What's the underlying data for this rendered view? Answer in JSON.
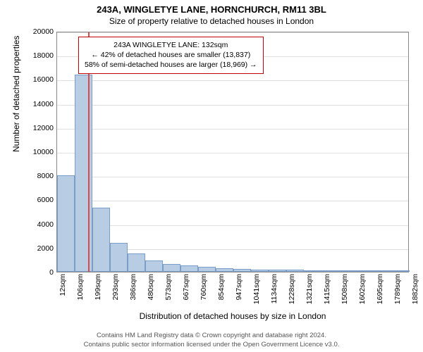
{
  "title": "243A, WINGLETYE LANE, HORNCHURCH, RM11 3BL",
  "subtitle": "Size of property relative to detached houses in London",
  "chart": {
    "type": "histogram",
    "background_color": "#ffffff",
    "grid_color": "#e0e0e0",
    "border_color": "#888888",
    "bar_fill": "#b8cce4",
    "bar_stroke": "#7a9ec9",
    "marker_color": "#d94a4a",
    "ylabel": "Number of detached properties",
    "xlabel": "Distribution of detached houses by size in London",
    "ylim": [
      0,
      20000
    ],
    "ytick_step": 2000,
    "yticks": [
      0,
      2000,
      4000,
      6000,
      8000,
      10000,
      12000,
      14000,
      16000,
      18000,
      20000
    ],
    "xticks": [
      "12sqm",
      "106sqm",
      "199sqm",
      "293sqm",
      "386sqm",
      "480sqm",
      "573sqm",
      "667sqm",
      "760sqm",
      "854sqm",
      "947sqm",
      "1041sqm",
      "1134sqm",
      "1228sqm",
      "1321sqm",
      "1415sqm",
      "1508sqm",
      "1602sqm",
      "1695sqm",
      "1789sqm",
      "1882sqm"
    ],
    "bars": [
      8000,
      16400,
      5300,
      2400,
      1500,
      950,
      650,
      500,
      400,
      300,
      250,
      200,
      170,
      150,
      130,
      120,
      110,
      100,
      90,
      80
    ],
    "marker_sqm": 132,
    "annotation": {
      "line1": "243A WINGLETYE LANE: 132sqm",
      "line2": "← 42% of detached houses are smaller (13,837)",
      "line3": "58% of semi-detached houses are larger (18,969) →",
      "border_color": "#c00000",
      "fontsize": 10.5
    },
    "label_fontsize": 12,
    "tick_fontsize": 10.5
  },
  "credits": {
    "line1": "Contains HM Land Registry data © Crown copyright and database right 2024.",
    "line2": "Contains public sector information licensed under the Open Government Licence v3.0."
  }
}
